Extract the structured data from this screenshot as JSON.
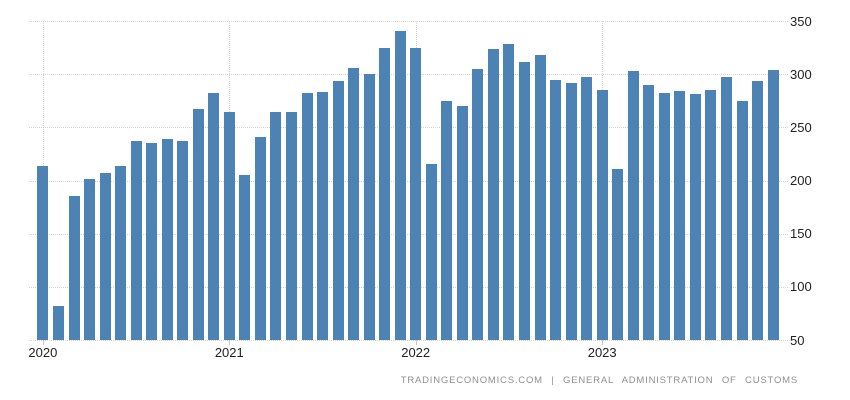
{
  "page": {
    "background": "#ffffff"
  },
  "footer": {
    "brand": "TRADINGECONOMICS.COM",
    "separator": "|",
    "source": "GENERAL ADMINISTRATION OF CUSTOMS",
    "color": "#8f8f8f"
  },
  "axes": {
    "y_tick_labels": [
      "350",
      "300",
      "250",
      "200",
      "150",
      "100",
      "50"
    ],
    "x_tick_labels": [
      "2020",
      "2021",
      "2022",
      "2023"
    ],
    "label_color": "#222222",
    "grid_color": "#d6d6d6",
    "axis_side": "right"
  },
  "chart_data": {
    "type": "bar",
    "title": "",
    "xlabel": "",
    "ylabel": "",
    "bar_color": "#4c82b4",
    "grid": "dotted horizontal every 50 units; dotted vertical at each January",
    "legend_position": "none",
    "ylim": [
      50,
      350
    ],
    "yticks": [
      50,
      100,
      150,
      200,
      250,
      300,
      350
    ],
    "xticks": [
      "2020",
      "2021",
      "2022",
      "2023"
    ],
    "x": [
      "2020-01",
      "2020-02",
      "2020-03",
      "2020-04",
      "2020-05",
      "2020-06",
      "2020-07",
      "2020-08",
      "2020-09",
      "2020-10",
      "2020-11",
      "2020-12",
      "2021-01",
      "2021-02",
      "2021-03",
      "2021-04",
      "2021-05",
      "2021-06",
      "2021-07",
      "2021-08",
      "2021-09",
      "2021-10",
      "2021-11",
      "2021-12",
      "2022-01",
      "2022-02",
      "2022-03",
      "2022-04",
      "2022-05",
      "2022-06",
      "2022-07",
      "2022-08",
      "2022-09",
      "2022-10",
      "2022-11",
      "2022-12",
      "2023-01",
      "2023-02",
      "2023-03",
      "2023-04",
      "2023-05",
      "2023-06",
      "2023-07",
      "2023-08",
      "2023-09",
      "2023-10",
      "2023-11",
      "2023-12"
    ],
    "values": [
      213.5,
      82,
      185.5,
      201,
      207.5,
      214,
      237,
      235,
      239,
      237.5,
      267.5,
      282,
      264.5,
      205,
      241,
      264.5,
      264.5,
      282,
      283,
      293.5,
      305.5,
      300.5,
      325,
      341,
      324.5,
      216,
      274.5,
      270,
      305,
      323.5,
      328.5,
      311.5,
      318.5,
      294.5,
      291.5,
      297,
      285,
      210.5,
      303,
      290,
      282.5,
      284,
      281,
      285,
      297,
      275,
      293.5,
      304
    ]
  }
}
